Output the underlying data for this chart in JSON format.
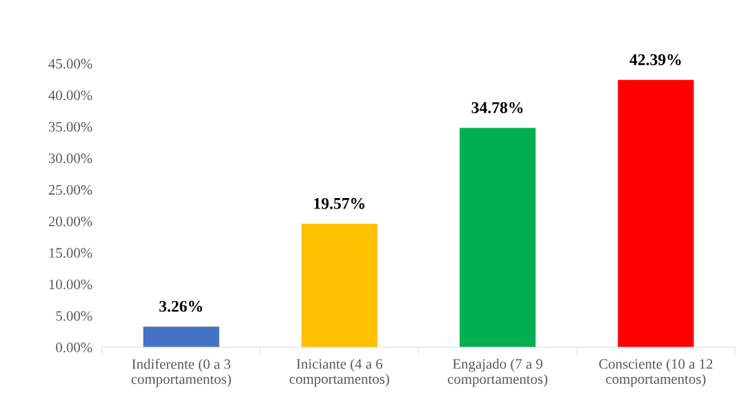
{
  "chart_data": {
    "type": "bar",
    "categories": [
      "Indiferente (0 a 3\ncomportamentos)",
      "Iniciante (4 a 6\ncomportamentos)",
      "Engajado (7 a 9\ncomportamentos)",
      "Consciente (10 a 12\ncomportamentos)"
    ],
    "values": [
      3.26,
      19.57,
      34.78,
      42.39
    ],
    "colors": [
      "#4472c4",
      "#ffc000",
      "#00b050",
      "#ff0000"
    ],
    "value_labels": [
      "3.26%",
      "19.57%",
      "34.78%",
      "42.39%"
    ],
    "ylim": [
      0,
      45
    ],
    "yticks": [
      {
        "value": 0,
        "label": "0.00%"
      },
      {
        "value": 5,
        "label": "5.00%"
      },
      {
        "value": 10,
        "label": "10.00%"
      },
      {
        "value": 15,
        "label": "15.00%"
      },
      {
        "value": 20,
        "label": "20.00%"
      },
      {
        "value": 25,
        "label": "25.00%"
      },
      {
        "value": 30,
        "label": "30.00%"
      },
      {
        "value": 35,
        "label": "35.00%"
      },
      {
        "value": 40,
        "label": "40.00%"
      },
      {
        "value": 45,
        "label": "45.00%"
      }
    ],
    "grid": false,
    "legend": false
  }
}
